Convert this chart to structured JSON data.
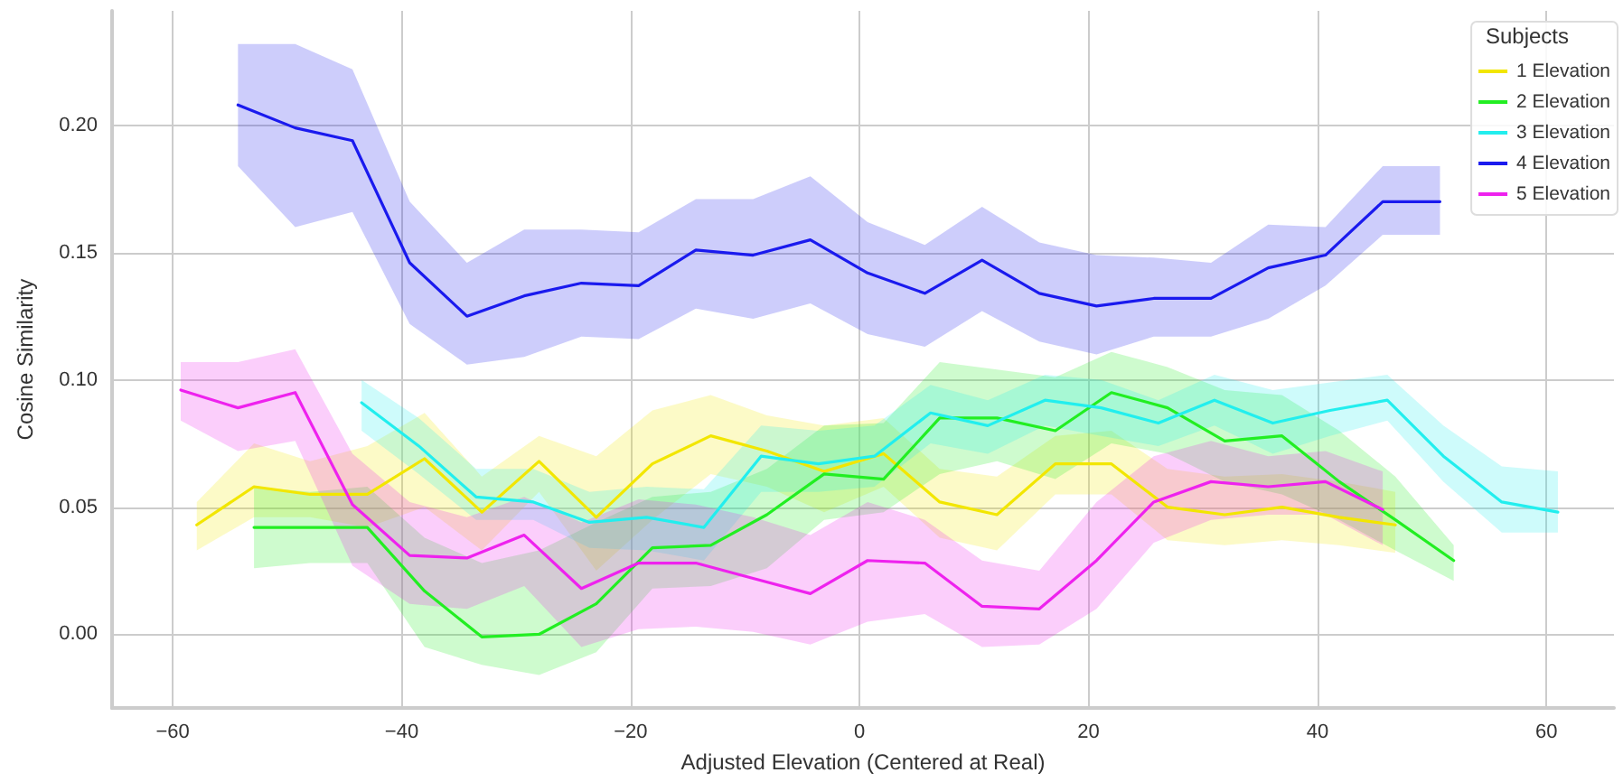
{
  "chart_data": {
    "type": "line",
    "xlabel": "Adjusted Elevation (Centered at Real)",
    "ylabel": "Cosine Similarity",
    "legend_title": "Subjects",
    "legend": "top right",
    "grid": true,
    "marker": "none",
    "line_style": "solid",
    "xlim": [
      -65.3,
      65.9
    ],
    "ylim": [
      -0.029,
      0.245
    ],
    "xticks": [
      {
        "value": -60,
        "label": "−60"
      },
      {
        "value": -40,
        "label": "−40"
      },
      {
        "value": -20,
        "label": "−20"
      },
      0,
      20,
      40,
      60
    ],
    "yticks": [
      {
        "value": 0,
        "label": "0.00"
      },
      {
        "value": 0.05,
        "label": "0.05"
      },
      {
        "value": 0.1,
        "label": "0.10"
      },
      {
        "value": 0.15,
        "label": "0.15"
      },
      {
        "value": 0.2,
        "label": "0.20"
      }
    ],
    "series": [
      {
        "name": "1 Elevation",
        "color": "#f2e600",
        "x": [
          -57.9,
          -52.9,
          -48,
          -43,
          -38,
          -33,
          -28,
          -23,
          -18.1,
          -13,
          -8.1,
          -3.1,
          2.1,
          7,
          12,
          17.1,
          22,
          26.9,
          31.9,
          36.9,
          41.9,
          46.8
        ],
        "values": [
          0.043,
          0.058,
          0.055,
          0.055,
          0.069,
          0.048,
          0.068,
          0.046,
          0.067,
          0.078,
          0.072,
          0.064,
          0.071,
          0.052,
          0.047,
          0.067,
          0.067,
          0.05,
          0.047,
          0.05,
          0.046,
          0.043
        ],
        "upper": [
          0.052,
          0.075,
          0.068,
          0.074,
          0.087,
          0.062,
          0.078,
          0.07,
          0.088,
          0.094,
          0.086,
          0.082,
          0.085,
          0.065,
          0.062,
          0.078,
          0.08,
          0.065,
          0.062,
          0.063,
          0.06,
          0.056
        ],
        "lower": [
          0.033,
          0.046,
          0.046,
          0.042,
          0.05,
          0.033,
          0.056,
          0.025,
          0.045,
          0.063,
          0.058,
          0.048,
          0.058,
          0.038,
          0.033,
          0.055,
          0.055,
          0.037,
          0.035,
          0.037,
          0.035,
          0.032
        ]
      },
      {
        "name": "2 Elevation",
        "color": "#22ee22",
        "x": [
          -52.9,
          -48,
          -43,
          -38,
          -33,
          -28,
          -23,
          -18.1,
          -13,
          -8.1,
          -3.1,
          2.1,
          7,
          12,
          17.1,
          22,
          26.9,
          31.9,
          36.9,
          41.9,
          46.8,
          51.9
        ],
        "values": [
          0.042,
          0.042,
          0.042,
          0.017,
          -0.001,
          0,
          0.012,
          0.034,
          0.035,
          0.047,
          0.063,
          0.061,
          0.085,
          0.085,
          0.08,
          0.095,
          0.089,
          0.076,
          0.078,
          0.06,
          0.045,
          0.029
        ],
        "upper": [
          0.058,
          0.056,
          0.058,
          0.038,
          0.028,
          0.033,
          0.044,
          0.054,
          0.056,
          0.065,
          0.082,
          0.083,
          0.107,
          0.104,
          0.101,
          0.111,
          0.105,
          0.096,
          0.094,
          0.08,
          0.062,
          0.035
        ],
        "lower": [
          0.026,
          0.028,
          0.028,
          -0.005,
          -0.012,
          -0.016,
          -0.007,
          0.018,
          0.019,
          0.026,
          0.045,
          0.048,
          0.063,
          0.068,
          0.061,
          0.075,
          0.071,
          0.06,
          0.055,
          0.045,
          0.033,
          0.021
        ]
      },
      {
        "name": "3 Elevation",
        "color": "#22eeee",
        "x": [
          -43.5,
          -38.5,
          -33.5,
          -28.5,
          -23.6,
          -18.6,
          -13.6,
          -8.6,
          -3.6,
          1.3,
          6.2,
          11.2,
          16.2,
          21.1,
          26.1,
          31,
          36.1,
          41.1,
          46.1,
          51,
          56.1,
          61
        ],
        "values": [
          0.091,
          0.074,
          0.054,
          0.052,
          0.044,
          0.046,
          0.042,
          0.07,
          0.067,
          0.07,
          0.087,
          0.082,
          0.092,
          0.089,
          0.083,
          0.092,
          0.083,
          0.088,
          0.092,
          0.07,
          0.052,
          0.048
        ],
        "upper": [
          0.1,
          0.085,
          0.065,
          0.065,
          0.056,
          0.058,
          0.057,
          0.082,
          0.08,
          0.082,
          0.098,
          0.092,
          0.102,
          0.1,
          0.092,
          0.102,
          0.096,
          0.099,
          0.102,
          0.082,
          0.066,
          0.064
        ],
        "lower": [
          0.08,
          0.063,
          0.045,
          0.045,
          0.034,
          0.033,
          0.029,
          0.056,
          0.056,
          0.058,
          0.075,
          0.071,
          0.082,
          0.078,
          0.074,
          0.082,
          0.071,
          0.078,
          0.084,
          0.06,
          0.04,
          0.04
        ]
      },
      {
        "name": "4 Elevation",
        "color": "#1a1aee",
        "x": [
          -54.3,
          -49.3,
          -44.3,
          -39.3,
          -34.3,
          -29.3,
          -24.3,
          -19.3,
          -14.3,
          -9.3,
          -4.3,
          0.7,
          5.7,
          10.7,
          15.7,
          20.7,
          25.7,
          30.7,
          35.7,
          40.7,
          45.7,
          50.7
        ],
        "values": [
          0.208,
          0.199,
          0.194,
          0.146,
          0.125,
          0.133,
          0.138,
          0.137,
          0.151,
          0.149,
          0.155,
          0.142,
          0.134,
          0.147,
          0.134,
          0.129,
          0.132,
          0.132,
          0.144,
          0.149,
          0.17,
          0.17
        ],
        "upper": [
          0.232,
          0.232,
          0.222,
          0.17,
          0.146,
          0.159,
          0.159,
          0.158,
          0.171,
          0.171,
          0.18,
          0.162,
          0.153,
          0.168,
          0.154,
          0.149,
          0.148,
          0.146,
          0.161,
          0.16,
          0.184,
          0.184
        ],
        "lower": [
          0.184,
          0.16,
          0.166,
          0.122,
          0.106,
          0.109,
          0.117,
          0.116,
          0.128,
          0.124,
          0.13,
          0.118,
          0.113,
          0.127,
          0.115,
          0.11,
          0.117,
          0.117,
          0.124,
          0.137,
          0.157,
          0.157
        ]
      },
      {
        "name": "5 Elevation",
        "color": "#ee22ee",
        "x": [
          -59.3,
          -54.3,
          -49.3,
          -44.3,
          -39.3,
          -34.3,
          -29.3,
          -24.3,
          -19.3,
          -14.3,
          -9.3,
          -4.3,
          0.7,
          5.7,
          10.7,
          15.7,
          20.7,
          25.7,
          30.7,
          35.7,
          40.7,
          45.7
        ],
        "values": [
          0.096,
          0.089,
          0.095,
          0.051,
          0.031,
          0.03,
          0.039,
          0.018,
          0.028,
          0.028,
          0.022,
          0.016,
          0.029,
          0.028,
          0.011,
          0.01,
          0.029,
          0.052,
          0.06,
          0.058,
          0.06,
          0.049
        ],
        "upper": [
          0.107,
          0.107,
          0.112,
          0.071,
          0.052,
          0.046,
          0.054,
          0.044,
          0.053,
          0.051,
          0.046,
          0.039,
          0.052,
          0.045,
          0.029,
          0.025,
          0.052,
          0.07,
          0.076,
          0.07,
          0.072,
          0.064
        ],
        "lower": [
          0.084,
          0.072,
          0.076,
          0.027,
          0.012,
          0.01,
          0.019,
          -0.005,
          0.002,
          0.003,
          0.001,
          -0.004,
          0.005,
          0.008,
          -0.005,
          -0.004,
          0.01,
          0.036,
          0.045,
          0.047,
          0.047,
          0.035
        ]
      }
    ]
  }
}
